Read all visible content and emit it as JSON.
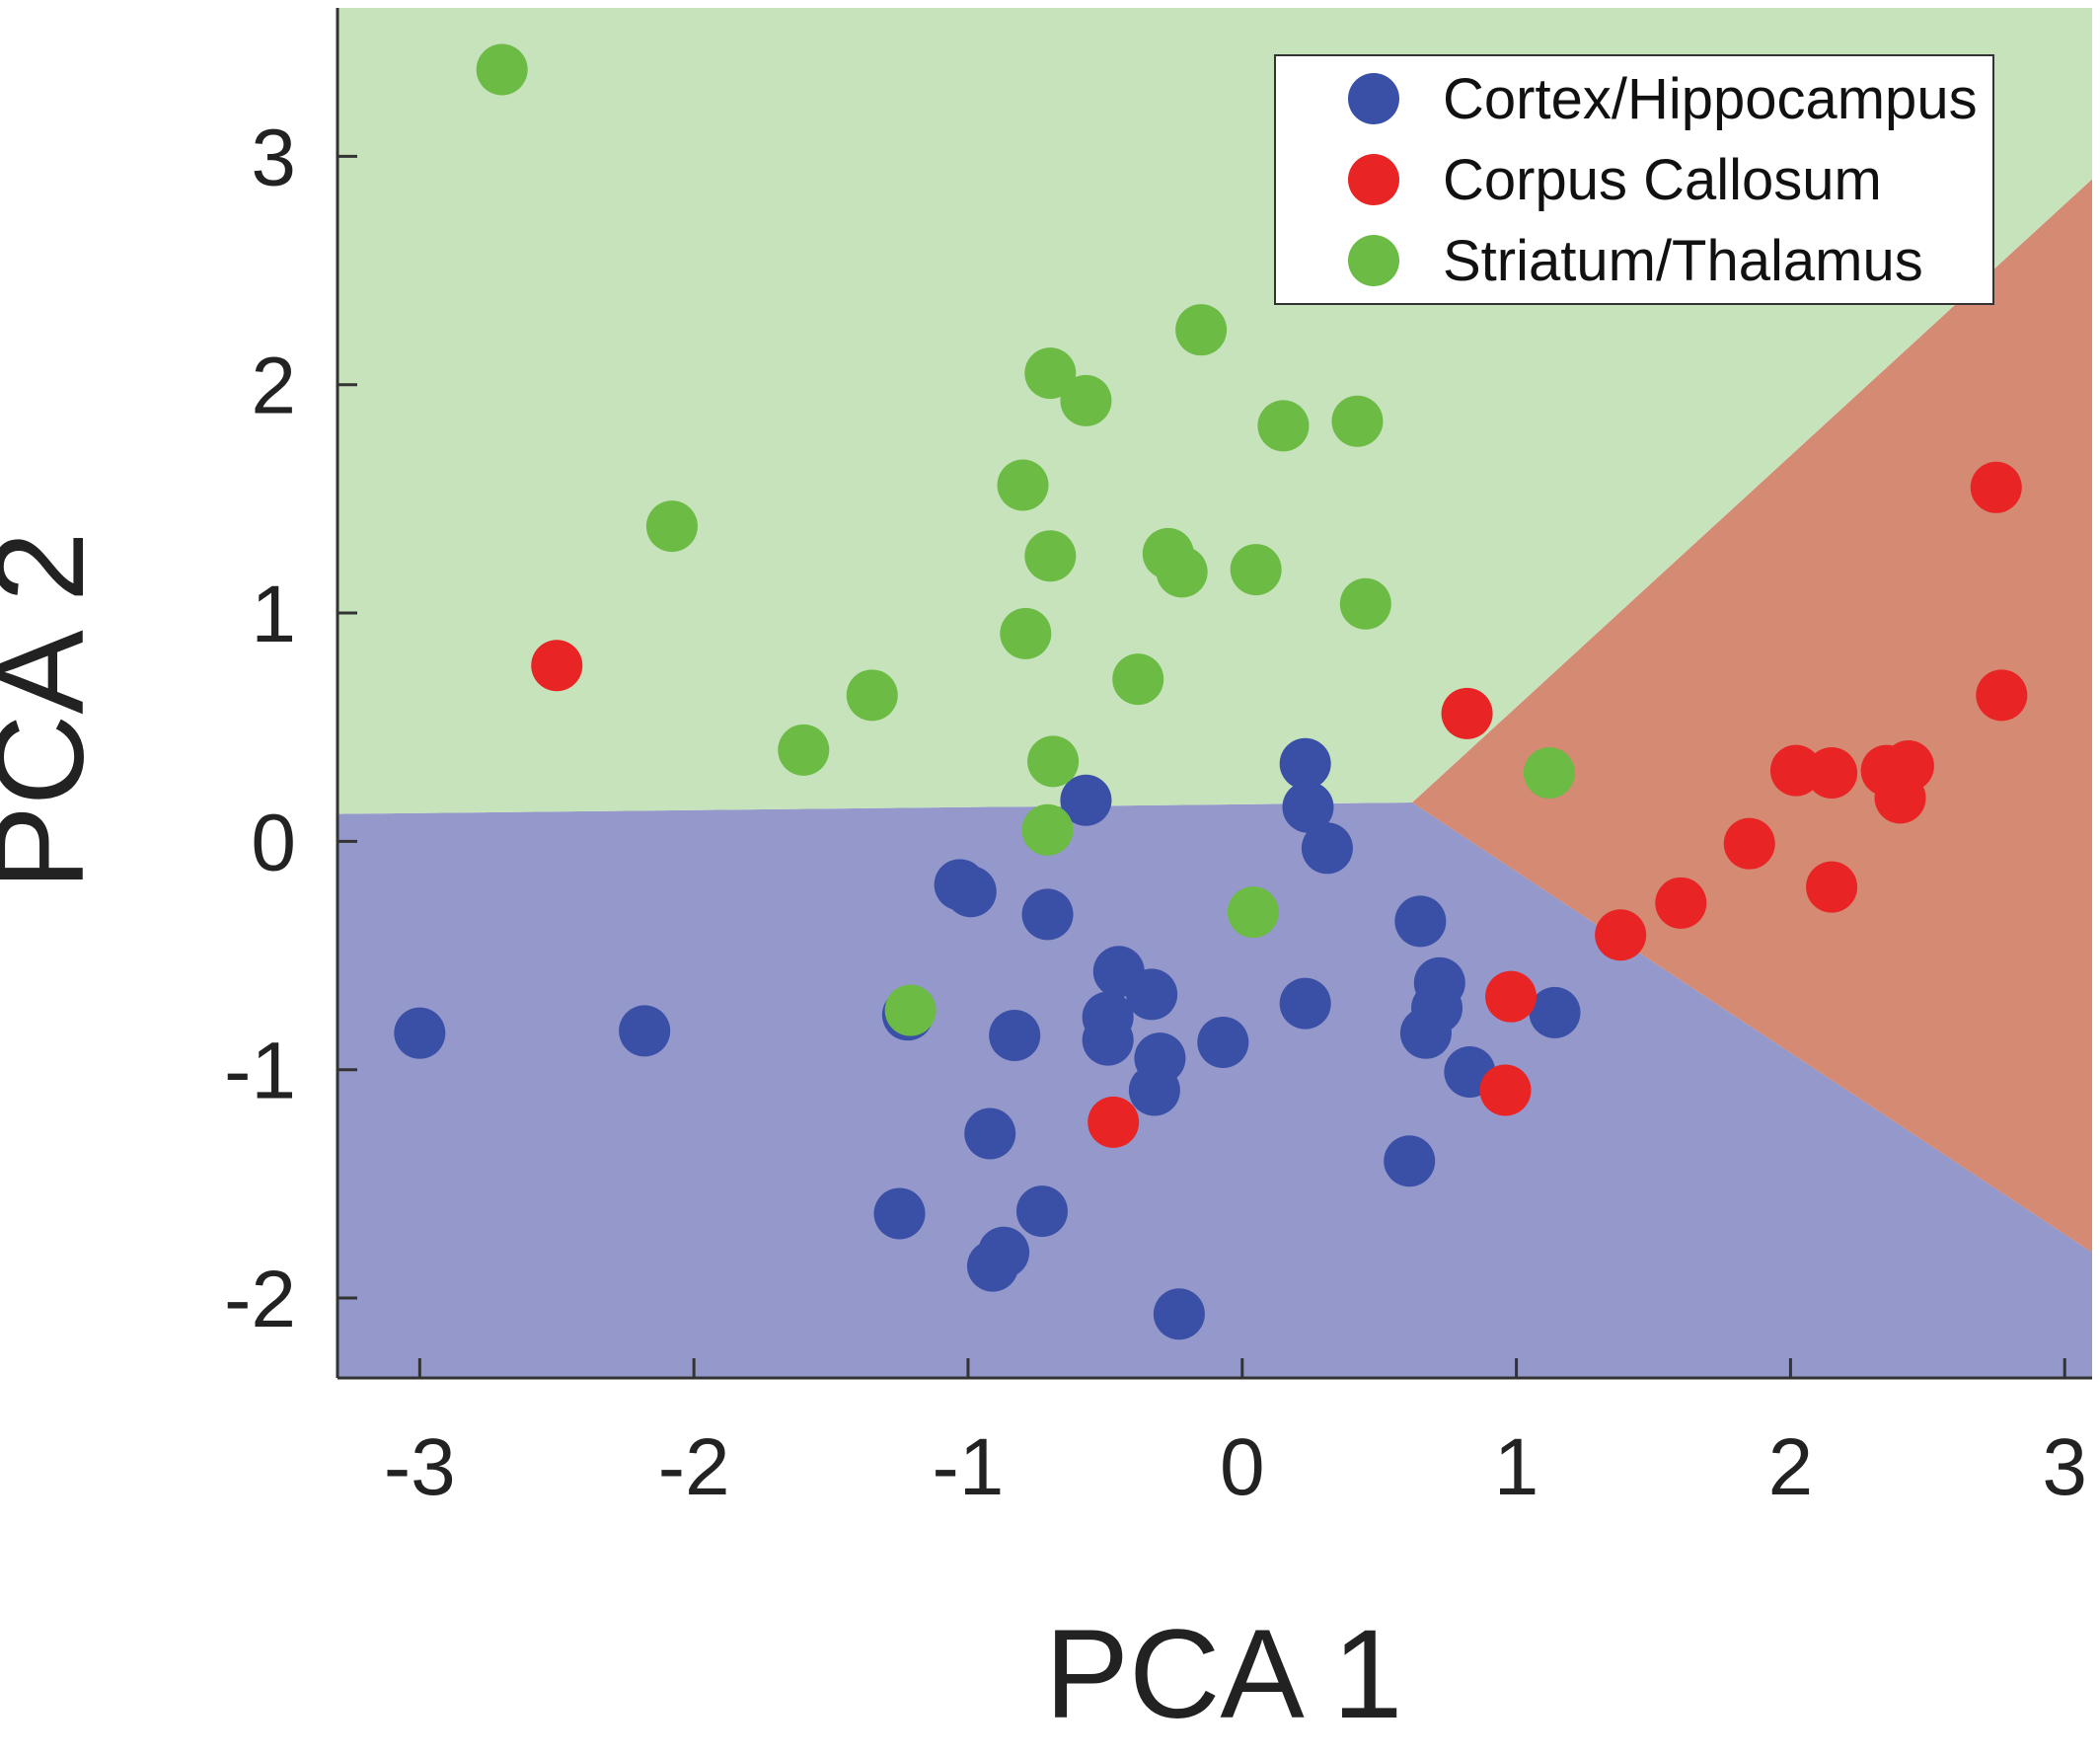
{
  "chart_data": {
    "type": "scatter",
    "xlabel": "PCA 1",
    "ylabel": "PCA 2",
    "xlim": [
      -3.3,
      3.1
    ],
    "ylim": [
      -2.35,
      3.65
    ],
    "xticks": [
      -3,
      -2,
      -1,
      0,
      1,
      2,
      3
    ],
    "yticks": [
      -2,
      -1,
      0,
      1,
      2,
      3
    ],
    "xtick_labels": [
      "-3",
      "-2",
      "-1",
      "0",
      "1",
      "2",
      "3"
    ],
    "ytick_labels": [
      "-2",
      "-1",
      "0",
      "1",
      "2",
      "3"
    ],
    "legend": {
      "placement": "top-right"
    },
    "grid": false,
    "decision_regions": [
      {
        "name": "Cortex/Hippocampus",
        "color": "#9498cb",
        "polygon": [
          [
            -3.3,
            -2.35
          ],
          [
            3.1,
            -2.35
          ],
          [
            3.1,
            -1.8
          ],
          [
            0.62,
            0.17
          ],
          [
            -3.3,
            0.12
          ]
        ]
      },
      {
        "name": "Corpus Callosum",
        "color": "#d48a73",
        "polygon": [
          [
            0.62,
            0.17
          ],
          [
            3.1,
            2.9
          ],
          [
            3.1,
            -1.8
          ]
        ]
      },
      {
        "name": "Striatum/Thalamus",
        "color": "#c6e3bc",
        "polygon": [
          [
            -3.3,
            3.65
          ],
          [
            3.1,
            3.65
          ],
          [
            3.1,
            2.9
          ],
          [
            0.62,
            0.17
          ],
          [
            -3.3,
            0.12
          ]
        ]
      }
    ],
    "series": [
      {
        "name": "Cortex/Hippocampus",
        "color": "#3a4fa6",
        "points": [
          [
            -3.0,
            -0.84
          ],
          [
            -2.18,
            -0.83
          ],
          [
            -1.22,
            -0.76
          ],
          [
            -1.03,
            -0.19
          ],
          [
            -0.99,
            -0.22
          ],
          [
            -0.71,
            -0.32
          ],
          [
            -0.83,
            -0.85
          ],
          [
            -0.92,
            -1.28
          ],
          [
            -1.25,
            -1.63
          ],
          [
            -0.73,
            -1.62
          ],
          [
            -0.87,
            -1.8
          ],
          [
            -0.91,
            -1.86
          ],
          [
            -0.57,
            0.18
          ],
          [
            -0.45,
            -0.57
          ],
          [
            -0.49,
            -0.77
          ],
          [
            -0.49,
            -0.87
          ],
          [
            -0.33,
            -0.67
          ],
          [
            -0.3,
            -0.95
          ],
          [
            -0.32,
            -1.09
          ],
          [
            -0.07,
            -0.88
          ],
          [
            -0.23,
            -2.07
          ],
          [
            0.23,
            0.34
          ],
          [
            0.24,
            0.15
          ],
          [
            0.31,
            -0.03
          ],
          [
            0.23,
            -0.71
          ],
          [
            0.65,
            -0.35
          ],
          [
            0.72,
            -0.62
          ],
          [
            0.71,
            -0.73
          ],
          [
            0.67,
            -0.84
          ],
          [
            0.83,
            -1.01
          ],
          [
            1.14,
            -0.75
          ],
          [
            0.61,
            -1.4
          ]
        ]
      },
      {
        "name": "Corpus Callosum",
        "color": "#e82424",
        "points": [
          [
            -2.5,
            0.77
          ],
          [
            -0.47,
            -1.23
          ],
          [
            0.82,
            0.56
          ],
          [
            0.98,
            -0.68
          ],
          [
            0.96,
            -1.09
          ],
          [
            1.38,
            -0.41
          ],
          [
            1.6,
            -0.27
          ],
          [
            1.85,
            -0.01
          ],
          [
            2.02,
            0.31
          ],
          [
            2.15,
            0.3
          ],
          [
            2.15,
            -0.2
          ],
          [
            2.35,
            0.31
          ],
          [
            2.43,
            0.33
          ],
          [
            2.4,
            0.19
          ],
          [
            2.75,
            1.55
          ],
          [
            2.77,
            0.64
          ]
        ]
      },
      {
        "name": "Striatum/Thalamus",
        "color": "#6cbb45",
        "points": [
          [
            -2.7,
            3.38
          ],
          [
            -2.08,
            1.38
          ],
          [
            -1.6,
            0.4
          ],
          [
            -1.35,
            0.64
          ],
          [
            -0.8,
            1.56
          ],
          [
            -0.7,
            2.05
          ],
          [
            -0.57,
            1.93
          ],
          [
            -0.7,
            1.25
          ],
          [
            -0.79,
            0.91
          ],
          [
            -0.38,
            0.71
          ],
          [
            -0.69,
            0.35
          ],
          [
            -0.71,
            0.05
          ],
          [
            -0.27,
            1.26
          ],
          [
            -0.22,
            1.18
          ],
          [
            -0.15,
            2.24
          ],
          [
            0.05,
            1.19
          ],
          [
            0.15,
            1.82
          ],
          [
            0.42,
            1.84
          ],
          [
            0.45,
            1.04
          ],
          [
            1.12,
            0.3
          ],
          [
            0.04,
            -0.31
          ],
          [
            -1.21,
            -0.74
          ]
        ]
      }
    ]
  }
}
